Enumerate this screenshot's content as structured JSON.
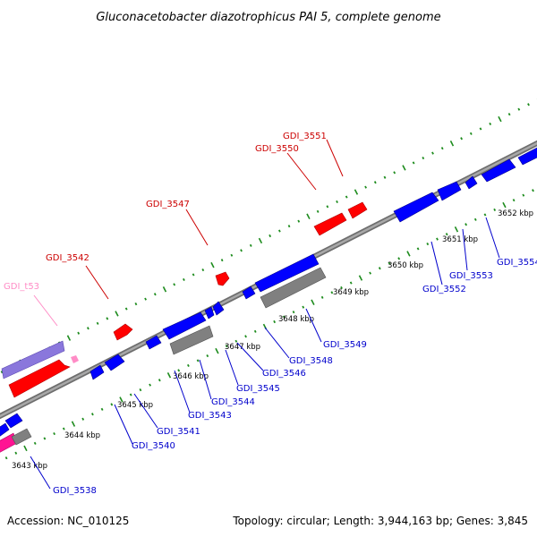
{
  "title": "Gluconacetobacter diazotrophicus PAI 5, complete genome",
  "footer": {
    "accession": "Accession: NC_010125",
    "summary": "Topology: circular; Length: 3,944,163 bp; Genes: 3,845"
  },
  "colors": {
    "forward_cds": "#ff0000",
    "reverse_cds": "#0000ff",
    "trna": "#ff8cc6",
    "gray_feature": "#808080",
    "purple_feature": "#8a77dc",
    "magenta_feature": "#ff1493",
    "genome_line": "#8c8c8c",
    "tick_marks": "#1e8c1e",
    "forward_label": "#cc0000",
    "reverse_label": "#0000cc",
    "trna_label": "#ff8cc6"
  },
  "ticks": [
    {
      "label": "3643 kbp"
    },
    {
      "label": "3644 kbp"
    },
    {
      "label": "3645 kbp"
    },
    {
      "label": "3646 kbp"
    },
    {
      "label": "3647 kbp"
    },
    {
      "label": "3648 kbp"
    },
    {
      "label": "3649 kbp"
    },
    {
      "label": "3650 kbp"
    },
    {
      "label": "3651 kbp"
    },
    {
      "label": "3652 kbp"
    }
  ],
  "forward_labels": [
    "GDI_t53",
    "GDI_3542",
    "GDI_3547",
    "GDI_3550",
    "GDI_3551"
  ],
  "reverse_labels": [
    "GDI_3538",
    "GDI_3540",
    "GDI_3541",
    "GDI_3543",
    "GDI_3544",
    "GDI_3545",
    "GDI_3546",
    "GDI_3548",
    "GDI_3549",
    "GDI_3552",
    "GDI_3553",
    "GDI_3554"
  ]
}
